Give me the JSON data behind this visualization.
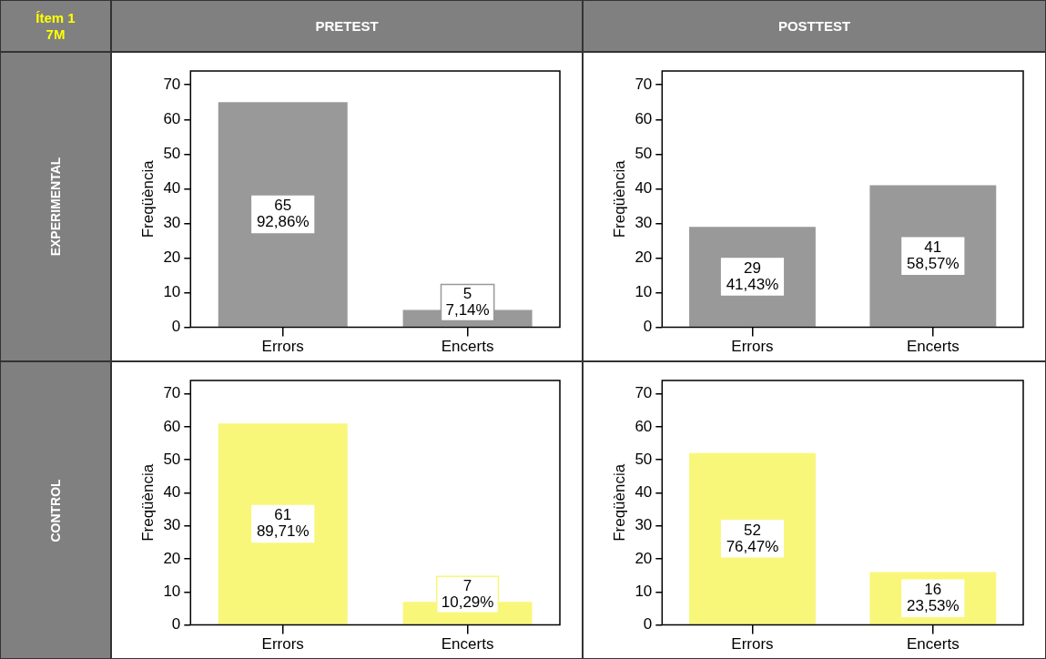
{
  "chart_data": [
    {
      "type": "other",
      "annotations": [
        "Ítem 1",
        "7M",
        "PRETEST",
        "POSTTEST",
        "EXPERIMENTAL",
        "CONTROL"
      ]
    },
    {
      "type": "bar",
      "categories": [
        "Errors",
        "Encerts"
      ],
      "values": [
        65,
        5
      ],
      "color": "#999999",
      "value_labels": [
        "65\n92,86%",
        "5\n7,14%"
      ],
      "ylabel": "Freqüència",
      "ylim": [
        0,
        74
      ],
      "yticks": [
        0,
        10,
        20,
        30,
        40,
        50,
        60,
        70
      ],
      "grid": false
    },
    {
      "type": "bar",
      "categories": [
        "Errors",
        "Encerts"
      ],
      "values": [
        29,
        41
      ],
      "color": "#999999",
      "value_labels": [
        "29\n41,43%",
        "41\n58,57%"
      ],
      "ylabel": "Freqüència",
      "ylim": [
        0,
        74
      ],
      "yticks": [
        0,
        10,
        20,
        30,
        40,
        50,
        60,
        70
      ],
      "grid": false
    },
    {
      "type": "bar",
      "categories": [
        "Errors",
        "Encerts"
      ],
      "values": [
        61,
        7
      ],
      "color": "#f8f77a",
      "value_labels": [
        "61\n89,71%",
        "7\n10,29%"
      ],
      "ylabel": "Freqüència",
      "ylim": [
        0,
        74
      ],
      "yticks": [
        0,
        10,
        20,
        30,
        40,
        50,
        60,
        70
      ],
      "grid": false
    },
    {
      "type": "bar",
      "categories": [
        "Errors",
        "Encerts"
      ],
      "values": [
        52,
        16
      ],
      "color": "#f8f77a",
      "value_labels": [
        "52\n76,47%",
        "16\n23,53%"
      ],
      "ylabel": "Freqüència",
      "ylim": [
        0,
        74
      ],
      "yticks": [
        0,
        10,
        20,
        30,
        40,
        50,
        60,
        70
      ],
      "grid": false
    }
  ]
}
